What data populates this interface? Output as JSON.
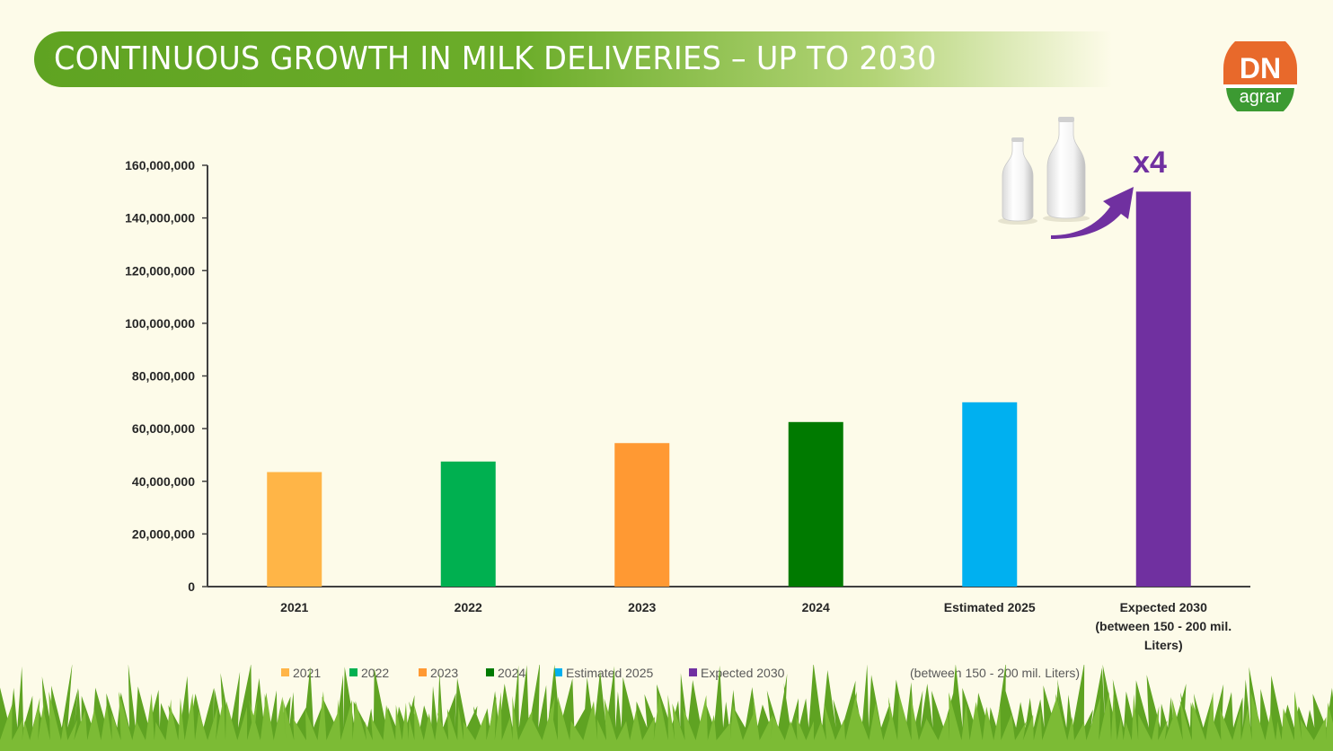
{
  "title": "CONTINUOUS GROWTH IN MILK DELIVERIES – UP TO 2030",
  "logo": {
    "mark": "DN",
    "text": "agrar"
  },
  "multiplier_label": "x4",
  "chart_data": {
    "type": "bar",
    "categories": [
      "2021",
      "2022",
      "2023",
      "2024",
      "Estimated 2025",
      "Expected 2030 (between 150 - 200 mil. Liters)"
    ],
    "category_lines": [
      [
        "2021"
      ],
      [
        "2022"
      ],
      [
        "2023"
      ],
      [
        "2024"
      ],
      [
        "Estimated 2025"
      ],
      [
        "Expected 2030",
        "(between 150 - 200 mil.",
        "Liters)"
      ]
    ],
    "values": [
      43500000,
      47500000,
      54500000,
      62500000,
      70000000,
      150000000
    ],
    "colors": [
      "#ffb547",
      "#00b050",
      "#ff9933",
      "#007a00",
      "#00b0f0",
      "#7030a0"
    ],
    "ylim": [
      0,
      160000000
    ],
    "yticks": [
      "0",
      "20,000,000",
      "40,000,000",
      "60,000,000",
      "80,000,000",
      "100,000,000",
      "120,000,000",
      "140,000,000",
      "160,000,000"
    ],
    "ytick_values": [
      0,
      20000000,
      40000000,
      60000000,
      80000000,
      100000000,
      120000000,
      140000000,
      160000000
    ],
    "legend": [
      "2021",
      "2022",
      "2023",
      "2024",
      "Estimated 2025",
      "Expected 2030",
      "(between 150 - 200 mil. Liters)"
    ],
    "legend_placement": "bottom",
    "grid": false
  }
}
